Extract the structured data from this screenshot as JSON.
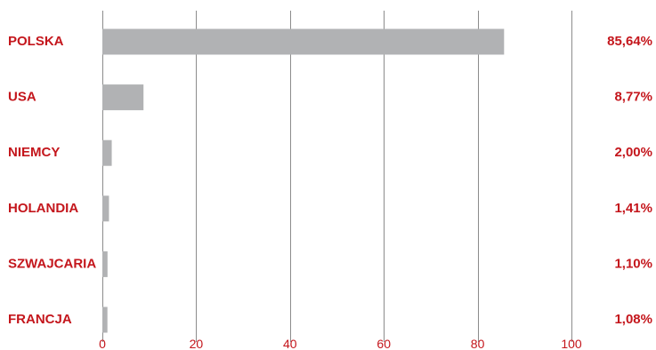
{
  "colors": {
    "label": "#c4161c",
    "bar": "#b1b2b4",
    "grid": "#8c8c8c",
    "background": "#ffffff"
  },
  "chart_data": {
    "type": "bar",
    "orientation": "horizontal",
    "categories": [
      "POLSKA",
      "USA",
      "NIEMCY",
      "HOLANDIA",
      "SZWAJCARIA",
      "FRANCJA"
    ],
    "values": [
      85.64,
      8.77,
      2.0,
      1.41,
      1.1,
      1.08
    ],
    "value_labels": [
      "85,64%",
      "8,77%",
      "2,00%",
      "1,41%",
      "1,10%",
      "1,08%"
    ],
    "xlim": [
      0,
      100
    ],
    "x_ticks": [
      0,
      20,
      40,
      60,
      80,
      100
    ],
    "x_tick_labels": [
      "0",
      "20",
      "40",
      "60",
      "80",
      "100"
    ],
    "grid": "vertical",
    "legend": "none",
    "title": "",
    "xlabel": "",
    "ylabel": ""
  }
}
